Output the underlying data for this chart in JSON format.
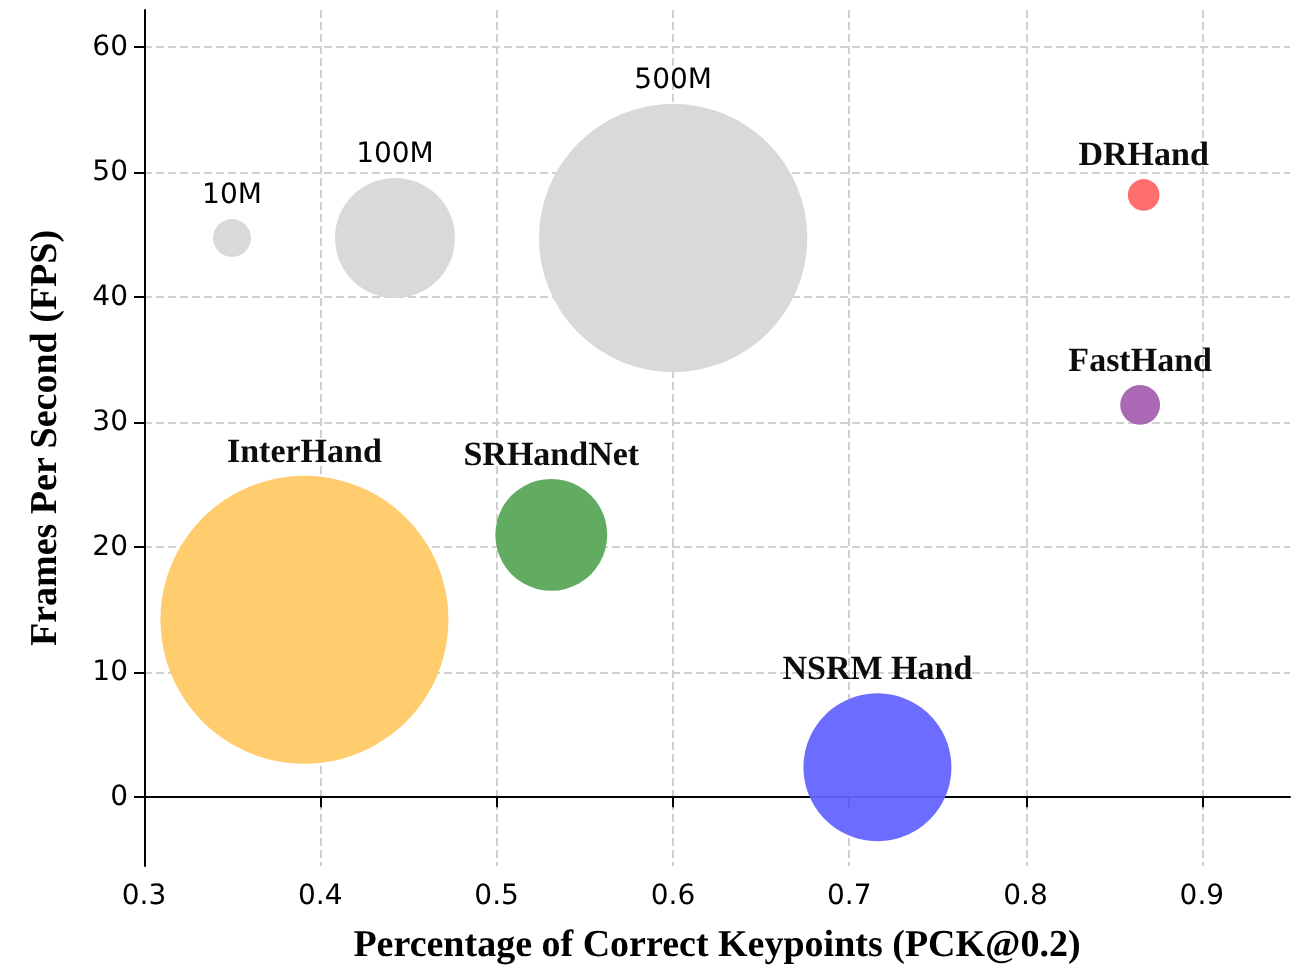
{
  "chart_data": {
    "type": "bubble",
    "xlabel": "Percentage of Correct Keypoints (PCK@0.2)",
    "ylabel": "Frames Per Second (FPS)",
    "xlim": [
      0.3,
      0.95
    ],
    "xticks": [
      0.3,
      0.4,
      0.5,
      0.6,
      0.7,
      0.8,
      0.9
    ],
    "ylim": [
      -5.5,
      63
    ],
    "yticks": [
      0,
      10,
      20,
      30,
      40,
      50,
      60
    ],
    "grid": true,
    "marker": "circle",
    "size_legend": [
      {
        "value": 10,
        "label": "10M"
      },
      {
        "value": 100,
        "label": "100M"
      },
      {
        "value": 500,
        "label": "500M"
      }
    ],
    "series": [
      {
        "name": "InterHand",
        "color": "#ffc966",
        "x": [
          0.391
        ],
        "values": [
          14.2
        ],
        "sizes": [
          576
        ]
      },
      {
        "name": "SRHandNet",
        "color": "#5aa85a",
        "x": [
          0.531
        ],
        "values": [
          21.0
        ],
        "sizes": [
          87
        ]
      },
      {
        "name": "NSRM Hand",
        "color": "#6464ff",
        "x": [
          0.716
        ],
        "values": [
          2.4
        ],
        "sizes": [
          152
        ]
      },
      {
        "name": "DRHand",
        "color": "#ff6666",
        "x": [
          0.867
        ],
        "values": [
          48.2
        ],
        "sizes": [
          7
        ]
      },
      {
        "name": "FastHand",
        "color": "#a660b0",
        "x": [
          0.865
        ],
        "values": [
          31.4
        ],
        "sizes": [
          11
        ]
      }
    ]
  }
}
